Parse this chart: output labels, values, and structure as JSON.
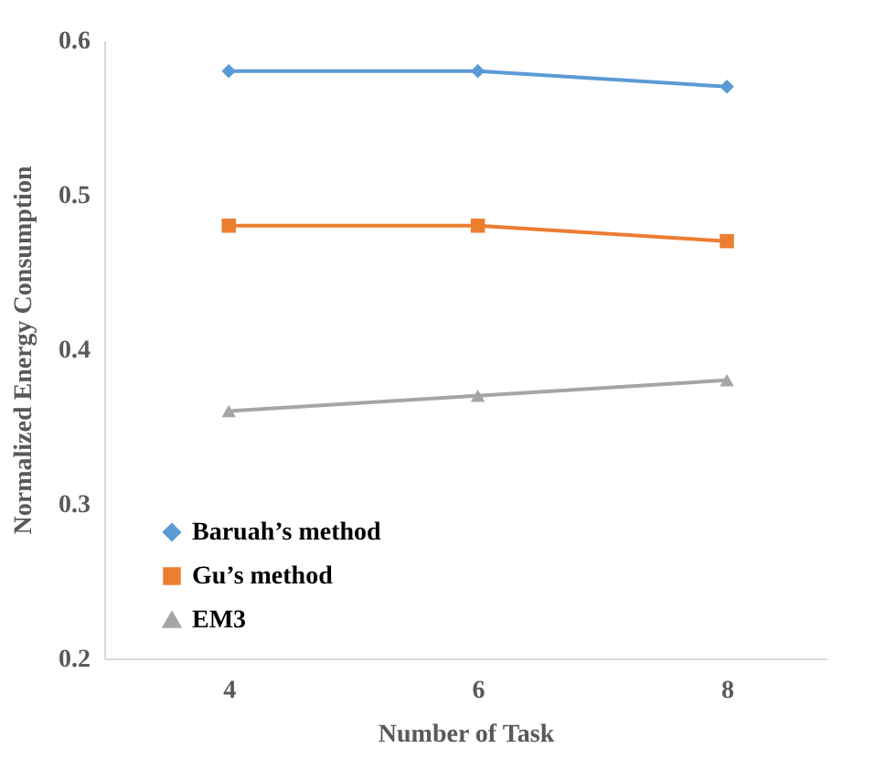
{
  "chart_data": {
    "type": "line",
    "xlabel": "Number of Task",
    "ylabel": "Normalized Energy Consumption",
    "categories": [
      "4",
      "6",
      "8"
    ],
    "ylim": [
      0.2,
      0.6
    ],
    "yticks": [
      0.2,
      0.3,
      0.4,
      0.5,
      0.6
    ],
    "grid": false,
    "legend": "bottom left",
    "series": [
      {
        "name": "Baruah’s method",
        "color": "#5b9bd5",
        "marker": "diamond",
        "values": [
          0.58,
          0.58,
          0.57
        ]
      },
      {
        "name": "Gu’s method",
        "color": "#ed7d31",
        "marker": "square",
        "values": [
          0.48,
          0.48,
          0.47
        ]
      },
      {
        "name": "EM3",
        "color": "#a5a5a5",
        "marker": "triangle",
        "values": [
          0.36,
          0.37,
          0.38
        ]
      }
    ]
  }
}
